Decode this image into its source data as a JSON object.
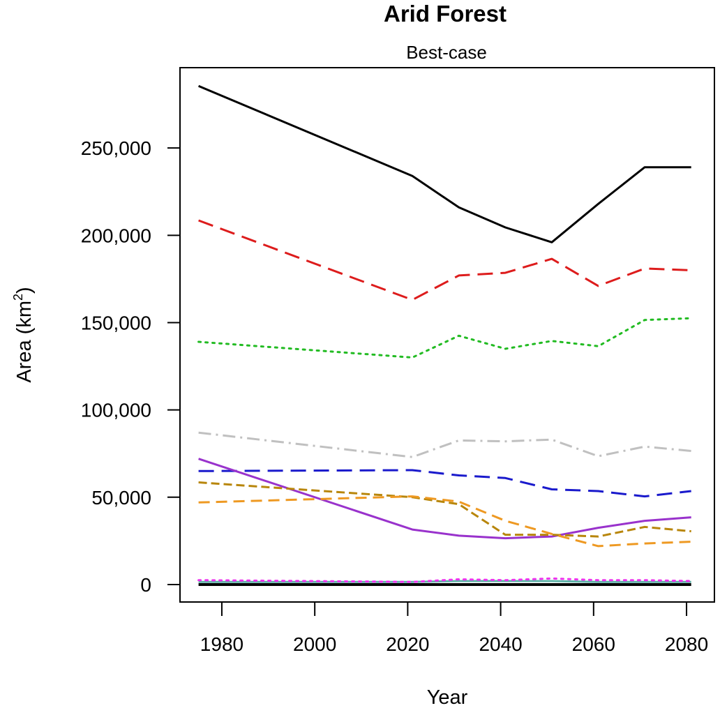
{
  "chart_data": {
    "type": "line",
    "title": "Arid Forest",
    "subtitle": "Best-case",
    "xlabel": "Year",
    "ylabel": "Area (km",
    "ylabel_sup": "2",
    "ylabel_close": ")",
    "xlim": [
      1971,
      2086
    ],
    "ylim": [
      -10000,
      296000
    ],
    "x_ticks": [
      1980,
      2000,
      2020,
      2040,
      2060,
      2080
    ],
    "x_tick_labels": [
      "1980",
      "2000",
      "2020",
      "2040",
      "2060",
      "2080"
    ],
    "y_ticks": [
      0,
      50000,
      100000,
      150000,
      200000,
      250000
    ],
    "y_tick_labels": [
      "0",
      "50,000",
      "100,000",
      "150,000",
      "200,000",
      "250,000"
    ],
    "grid": false,
    "legend": "none",
    "x": [
      1975,
      2021,
      2031,
      2041,
      2051,
      2061,
      2071,
      2081
    ],
    "series": [
      {
        "color": "#000000",
        "dash": "solid",
        "width": 3,
        "values": [
          285500,
          234000,
          216000,
          204500,
          196000,
          218000,
          239000,
          239000
        ]
      },
      {
        "color": "#dd1c1c",
        "dash": "long-dash",
        "width": 3,
        "values": [
          208500,
          163000,
          177000,
          178500,
          186500,
          171000,
          181000,
          180000
        ]
      },
      {
        "color": "#22bb22",
        "dash": "dotted",
        "width": 3,
        "values": [
          139000,
          130000,
          142500,
          135000,
          139500,
          136500,
          151500,
          152500
        ]
      },
      {
        "color": "#c0c0c0",
        "dash": "dash-dot",
        "width": 3,
        "values": [
          87000,
          73000,
          82500,
          82000,
          83000,
          73500,
          79000,
          76500
        ]
      },
      {
        "color": "#1a1acc",
        "dash": "long-dash",
        "width": 3,
        "values": [
          65000,
          65500,
          62500,
          61000,
          54500,
          53500,
          50500,
          53500
        ]
      },
      {
        "color": "#9932cc",
        "dash": "solid",
        "width": 3,
        "values": [
          72000,
          31500,
          28000,
          26500,
          27500,
          32500,
          36500,
          38500
        ]
      },
      {
        "color": "#b8860b",
        "dash": "short-dash",
        "width": 3,
        "values": [
          58500,
          50000,
          46000,
          28500,
          28500,
          27500,
          33000,
          30500
        ]
      },
      {
        "color": "#ee9922",
        "dash": "dashed",
        "width": 3,
        "values": [
          47000,
          50500,
          47500,
          36500,
          29000,
          22000,
          23500,
          24500
        ]
      },
      {
        "color": "#5fb3a8",
        "dash": "solid",
        "width": 3,
        "values": [
          1500,
          1500,
          2000,
          2000,
          2000,
          1500,
          1500,
          1500
        ]
      },
      {
        "color": "#ee33ee",
        "dash": "dotted",
        "width": 3,
        "values": [
          2500,
          1500,
          3000,
          2500,
          3500,
          2500,
          2500,
          2000
        ]
      },
      {
        "color": "#000000",
        "dash": "solid",
        "width": 4,
        "values": [
          0,
          0,
          0,
          0,
          0,
          0,
          0,
          0
        ]
      }
    ]
  }
}
